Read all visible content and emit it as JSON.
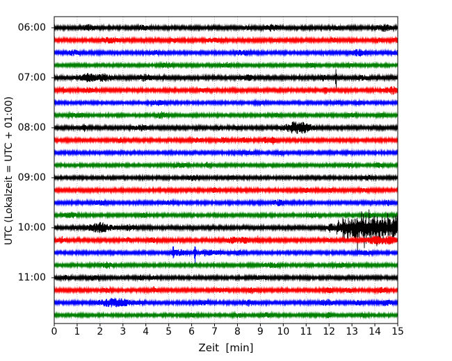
{
  "chart_data": {
    "type": "line",
    "subtype": "helicorder-seismogram-drumplot",
    "title": "",
    "xlabel": "Zeit  [min]",
    "ylabel": "UTC (Lokalzeit = UTC + 01:00)",
    "xlim": [
      0,
      15
    ],
    "xticks": [
      0,
      1,
      2,
      3,
      4,
      5,
      6,
      7,
      8,
      9,
      10,
      11,
      12,
      13,
      14,
      15
    ],
    "ytick_labels": [
      "06:00",
      "07:00",
      "08:00",
      "09:00",
      "10:00",
      "11:00"
    ],
    "traces_per_hour": 4,
    "trace_interval_min": 15,
    "grid": {
      "style": "dotted",
      "color": "#999999",
      "every_min": 1,
      "orientation": "vertical"
    },
    "colors_cycle": [
      "#000000",
      "#ff0000",
      "#0000ff",
      "#008000"
    ],
    "amplitude_unit": "px_half_height",
    "traces": [
      {
        "start": "06:00",
        "color": "#000000",
        "base_amp": 2.5,
        "events": [
          [
            1.5,
            3,
            0.25
          ],
          [
            3.9,
            3,
            0.2
          ],
          [
            8.4,
            1.5,
            0.15
          ],
          [
            9.5,
            3.5,
            0.25
          ],
          [
            12.4,
            1.5,
            0.15
          ],
          [
            14.4,
            3.5,
            0.3
          ]
        ]
      },
      {
        "start": "06:15",
        "color": "#ff0000",
        "base_amp": 2.5,
        "events": [
          [
            2.45,
            3,
            0.3
          ],
          [
            5.2,
            1.5,
            0.2
          ],
          [
            7.0,
            2,
            0.3
          ],
          [
            9.7,
            2.5,
            0.08
          ],
          [
            12.2,
            2.5,
            0.1
          ],
          [
            14.2,
            2,
            0.15
          ],
          [
            15,
            2,
            0.2
          ]
        ]
      },
      {
        "start": "06:30",
        "color": "#0000ff",
        "base_amp": 2.4,
        "events": [
          [
            0.8,
            2.5,
            0.25
          ],
          [
            4.4,
            2,
            0.2
          ],
          [
            8.2,
            3,
            0.25
          ],
          [
            13.3,
            3.5,
            0.3
          ],
          [
            15,
            2.5,
            0.2
          ]
        ]
      },
      {
        "start": "06:45",
        "color": "#008000",
        "base_amp": 2.2,
        "events": [
          [
            4.9,
            3.5,
            0.2
          ],
          [
            7.5,
            3.5,
            0.15
          ],
          [
            11.2,
            2,
            0.2
          ],
          [
            12.9,
            2,
            0.15
          ]
        ]
      },
      {
        "start": "07:00",
        "color": "#000000",
        "base_amp": 2.8,
        "events": [
          [
            1.5,
            4.5,
            0.35
          ],
          [
            2.2,
            3.5,
            0.3
          ],
          [
            4.0,
            3.5,
            0.3
          ],
          [
            8.5,
            2.5,
            0.2
          ],
          [
            11.75,
            3,
            0.1
          ],
          [
            12.3,
            24,
            0.025
          ],
          [
            13.5,
            2,
            0.2
          ]
        ]
      },
      {
        "start": "07:15",
        "color": "#ff0000",
        "base_amp": 2.5,
        "events": [
          [
            0.4,
            3.5,
            0.1
          ],
          [
            1.5,
            2,
            0.2
          ],
          [
            6.5,
            1.5,
            0.2
          ],
          [
            11.85,
            5,
            0.05
          ],
          [
            14.8,
            4,
            0.3
          ]
        ]
      },
      {
        "start": "07:30",
        "color": "#0000ff",
        "base_amp": 2.2,
        "events": [
          [
            4.5,
            2.5,
            0.25
          ],
          [
            9.0,
            1.5,
            0.2
          ],
          [
            12.4,
            1.5,
            0.15
          ],
          [
            13.3,
            1.5,
            0.15
          ]
        ]
      },
      {
        "start": "07:45",
        "color": "#008000",
        "base_amp": 2.2,
        "events": [
          [
            1.0,
            2.5,
            0.3
          ],
          [
            4.7,
            4,
            0.2
          ],
          [
            9.7,
            1.5,
            0.15
          ],
          [
            13.0,
            1.5,
            0.2
          ],
          [
            14.3,
            1.5,
            0.2
          ]
        ]
      },
      {
        "start": "08:00",
        "color": "#000000",
        "base_amp": 2.5,
        "events": [
          [
            1.3,
            4,
            0.1
          ],
          [
            3.8,
            3,
            0.3
          ],
          [
            7.2,
            1.5,
            0.1
          ],
          [
            8.0,
            1.5,
            0.1
          ],
          [
            10.5,
            6.5,
            0.45
          ],
          [
            11.0,
            4,
            0.3
          ]
        ]
      },
      {
        "start": "08:15",
        "color": "#ff0000",
        "base_amp": 2.5,
        "events": [
          [
            2.9,
            3.5,
            0.08
          ],
          [
            6.2,
            2,
            0.2
          ],
          [
            7.4,
            2.5,
            0.2
          ],
          [
            8.3,
            2,
            0.2
          ],
          [
            9.2,
            3.5,
            0.12
          ],
          [
            9.55,
            4.5,
            0.1
          ]
        ]
      },
      {
        "start": "08:30",
        "color": "#0000ff",
        "base_amp": 2.3,
        "events": [
          [
            8.5,
            1.5,
            0.4
          ],
          [
            9.8,
            1.5,
            0.2
          ],
          [
            12.8,
            1.5,
            0.2
          ]
        ]
      },
      {
        "start": "08:45",
        "color": "#008000",
        "base_amp": 2.2,
        "events": [
          [
            5.5,
            2,
            0.3
          ],
          [
            6.7,
            3.5,
            0.1
          ],
          [
            12.8,
            3,
            0.15
          ],
          [
            14.2,
            3,
            0.15
          ]
        ]
      },
      {
        "start": "09:00",
        "color": "#000000",
        "base_amp": 2.3,
        "events": [
          [
            6.1,
            3.5,
            0.25
          ],
          [
            7.8,
            1.5,
            0.15
          ],
          [
            13.7,
            2,
            0.2
          ]
        ]
      },
      {
        "start": "09:15",
        "color": "#ff0000",
        "base_amp": 2.5,
        "events": [
          [
            7.0,
            3.5,
            0.1
          ],
          [
            11.0,
            2,
            0.15
          ],
          [
            12.1,
            2,
            0.1
          ],
          [
            13.5,
            1.5,
            0.2
          ]
        ]
      },
      {
        "start": "09:30",
        "color": "#0000ff",
        "base_amp": 2.4,
        "events": [
          [
            2.0,
            2,
            0.3
          ],
          [
            5.0,
            1.5,
            0.3
          ],
          [
            9.8,
            3,
            0.2
          ],
          [
            14.6,
            2.5,
            0.15
          ]
        ]
      },
      {
        "start": "09:45",
        "color": "#008000",
        "base_amp": 2.3,
        "events": [
          [
            0.7,
            3.5,
            0.25
          ],
          [
            3.9,
            2,
            0.2
          ],
          [
            11.3,
            2,
            0.2
          ],
          [
            13.8,
            2,
            0.2
          ]
        ]
      },
      {
        "start": "10:00",
        "color": "#000000",
        "base_amp": 2.6,
        "events": [
          [
            2.0,
            5.5,
            0.5
          ],
          [
            3.3,
            3,
            0.2
          ],
          [
            12.1,
            6,
            0.15
          ]
        ],
        "burst": {
          "t0": 12.25,
          "t1": 15.05,
          "a": 13,
          "spike": 30
        }
      },
      {
        "start": "10:15",
        "color": "#ff0000",
        "base_amp": 2.5,
        "events": [
          [
            0.3,
            4,
            0.15
          ],
          [
            3.2,
            2.5,
            0.15
          ],
          [
            4.3,
            2.5,
            0.15
          ],
          [
            7.8,
            3,
            0.3
          ],
          [
            8.3,
            3,
            0.2
          ],
          [
            8.9,
            4.5,
            0.05
          ],
          [
            12.0,
            2,
            0.1
          ],
          [
            14.0,
            4,
            0.4
          ],
          [
            14.6,
            4,
            0.3
          ]
        ]
      },
      {
        "start": "10:30",
        "color": "#0000ff",
        "base_amp": 2.3,
        "events": [
          [
            5.2,
            9,
            0.04
          ],
          [
            5.5,
            3,
            0.3
          ],
          [
            6.15,
            18,
            0.03
          ],
          [
            6.6,
            3,
            0.2
          ],
          [
            7.0,
            2.5,
            0.3
          ],
          [
            8.0,
            2,
            0.2
          ],
          [
            13.5,
            2,
            0.3
          ]
        ]
      },
      {
        "start": "10:45",
        "color": "#008000",
        "base_amp": 2.3,
        "events": [
          [
            2.3,
            3.5,
            0.25
          ],
          [
            9.5,
            2.5,
            0.3
          ],
          [
            12.5,
            2,
            0.2
          ]
        ]
      },
      {
        "start": "11:00",
        "color": "#000000",
        "base_amp": 2.4,
        "events": [
          [
            0.5,
            2,
            0.2
          ],
          [
            1.7,
            2.5,
            0.2
          ],
          [
            3.8,
            2.5,
            0.15
          ],
          [
            4.3,
            2,
            0.1
          ],
          [
            9.0,
            1.5,
            0.3
          ]
        ]
      },
      {
        "start": "11:15",
        "color": "#ff0000",
        "base_amp": 2.4,
        "events": [
          [
            2.3,
            2.5,
            0.15
          ],
          [
            4.35,
            3.5,
            0.15
          ],
          [
            7.3,
            2,
            0.2
          ],
          [
            8.6,
            3.5,
            0.15
          ],
          [
            12.0,
            2.5,
            0.15
          ],
          [
            12.9,
            2.5,
            0.2
          ],
          [
            14.3,
            2.5,
            0.2
          ]
        ]
      },
      {
        "start": "11:30",
        "color": "#0000ff",
        "base_amp": 2.4,
        "events": [
          [
            2.7,
            5,
            0.7
          ],
          [
            6.5,
            2,
            0.2
          ],
          [
            8.5,
            3.5,
            0.2
          ],
          [
            11.9,
            3.5,
            0.25
          ],
          [
            13.3,
            2.5,
            0.2
          ],
          [
            14.5,
            3.5,
            0.2
          ]
        ]
      },
      {
        "start": "11:45",
        "color": "#008000",
        "base_amp": 2.2,
        "events": [
          [
            6.0,
            1.5,
            0.2
          ],
          [
            8.0,
            2,
            0.2
          ],
          [
            9.3,
            2.5,
            0.2
          ],
          [
            12.0,
            3,
            0.1
          ],
          [
            13.5,
            1.5,
            0.2
          ]
        ]
      }
    ]
  }
}
